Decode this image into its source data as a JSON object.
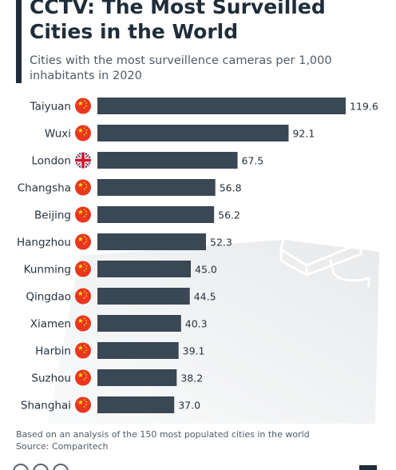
{
  "header": {
    "title": "CCTV: The Most Surveilled Cities in the World",
    "subtitle": "Cities with the most surveillence cameras per 1,000 inhabitants in 2020"
  },
  "chart_data": {
    "type": "bar",
    "orientation": "horizontal",
    "title": "CCTV: The Most Surveilled Cities in the World",
    "subtitle": "Cities with the most surveillence cameras per 1,000 inhabitants in 2020",
    "categories": [
      "Taiyuan",
      "Wuxi",
      "London",
      "Changsha",
      "Beijing",
      "Hangzhou",
      "Kunming",
      "Qingdao",
      "Xiamen",
      "Harbin",
      "Suzhou",
      "Shanghai"
    ],
    "values": [
      119.6,
      92.1,
      67.5,
      56.8,
      56.2,
      52.3,
      45.0,
      44.5,
      40.3,
      39.1,
      38.2,
      37.0
    ],
    "value_labels": [
      "119.6",
      "92.1",
      "67.5",
      "56.8",
      "56.2",
      "52.3",
      "45.0",
      "44.5",
      "40.3",
      "39.1",
      "38.2",
      "37.0"
    ],
    "flags": [
      "china",
      "china",
      "uk",
      "china",
      "china",
      "china",
      "china",
      "china",
      "china",
      "china",
      "china",
      "china"
    ],
    "xlim": [
      0,
      119.6
    ],
    "grid": false,
    "bar_color": "#3a4754"
  },
  "footnote": {
    "note": "Based on an analysis of the 150 most populated cities in the world",
    "source": "Source: Comparitech"
  },
  "colors": {
    "text": "#1f2d3a",
    "muted": "#4f5b66",
    "bar": "#3a4754",
    "china_flag": "#e8371e",
    "china_star": "#ffd21e",
    "uk_blue": "#2b3a8c",
    "uk_red": "#cf142b"
  }
}
